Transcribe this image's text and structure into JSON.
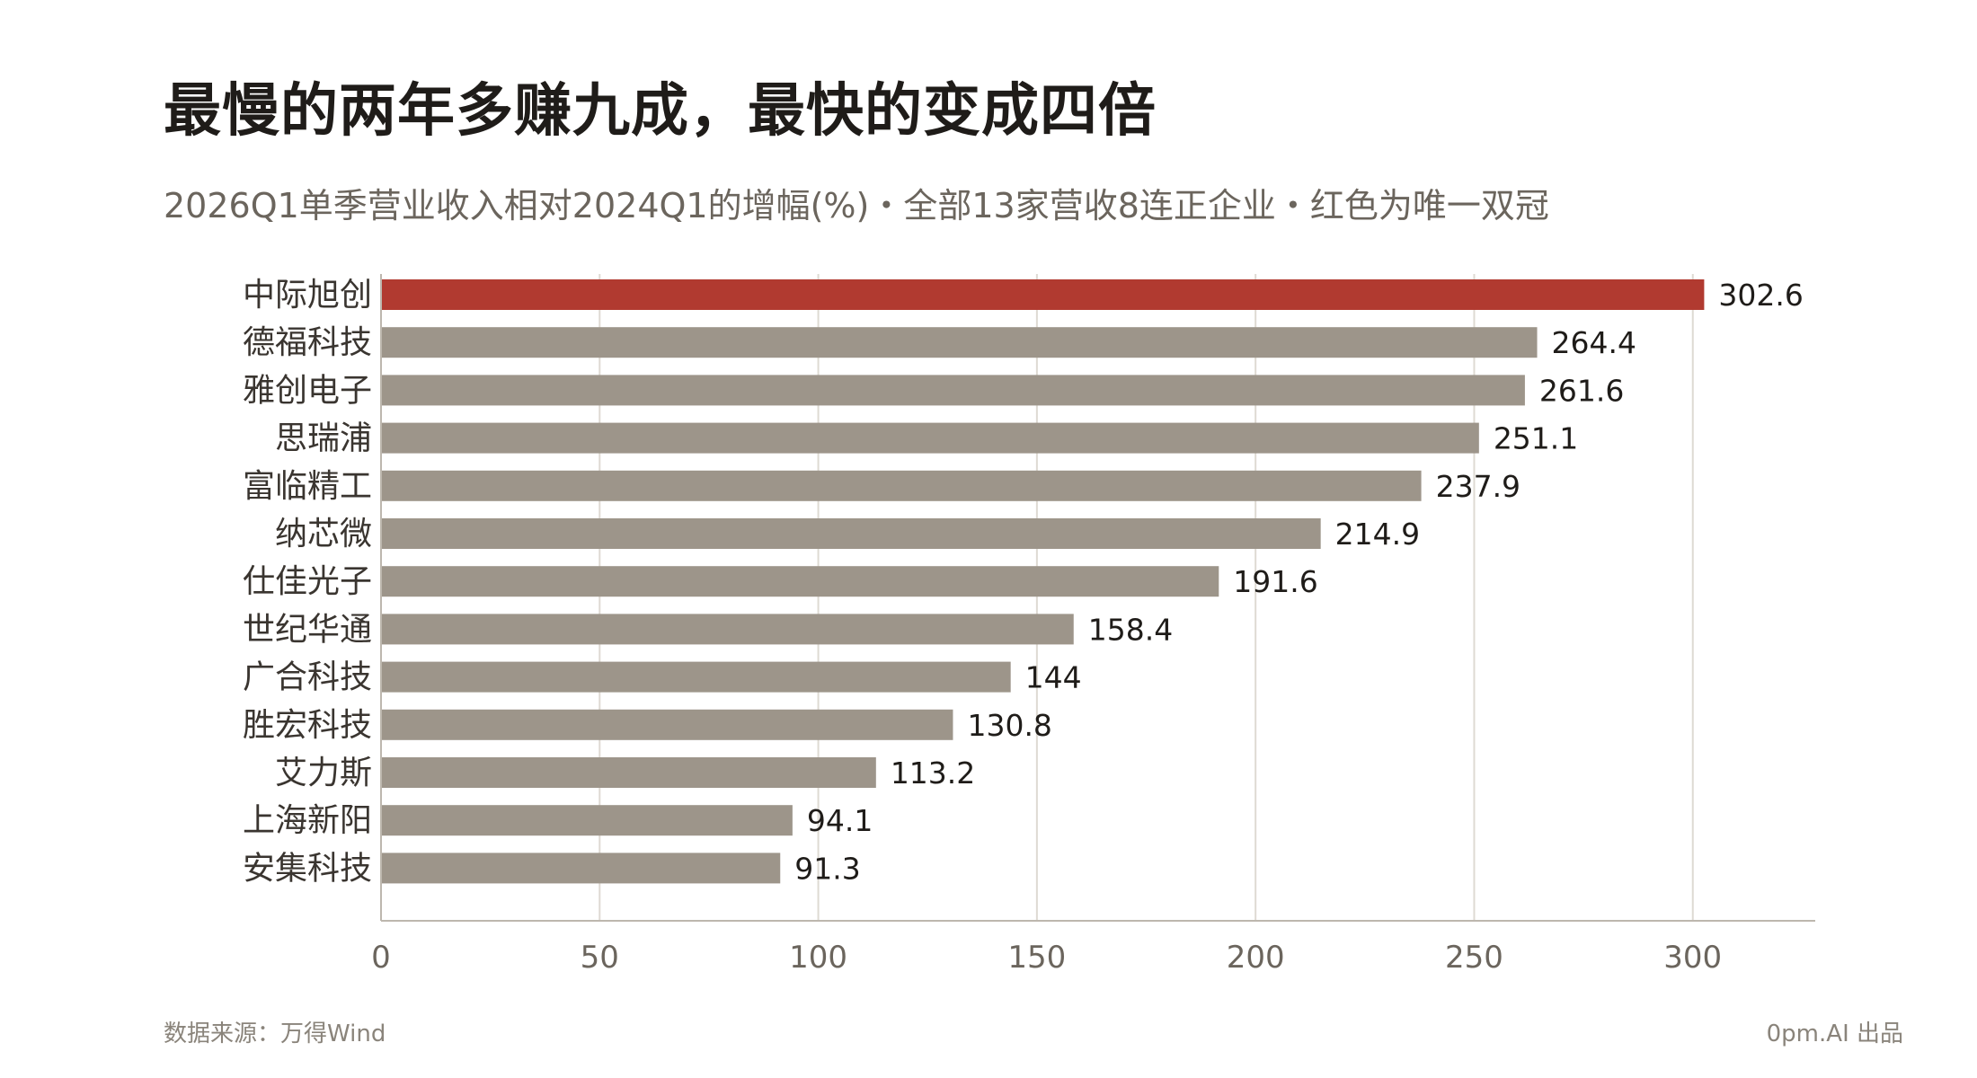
{
  "header": {
    "title": "最慢的两年多赚九成，最快的变成四倍",
    "subtitle": "2026Q1单季营业收入相对2024Q1的增幅(%)・全部13家营收8连正企业・红色为唯一双冠"
  },
  "footer": {
    "source": "数据来源：万得Wind",
    "credit": "0pm.AI 出品"
  },
  "colors": {
    "highlight": "#b13a30",
    "bar": "#9d958a",
    "grid": "#dedad3",
    "axis": "#bdb7ae"
  },
  "chart_data": {
    "type": "bar",
    "orientation": "horizontal",
    "categories": [
      "中际旭创",
      "德福科技",
      "雅创电子",
      "思瑞浦",
      "富临精工",
      "纳芯微",
      "仕佳光子",
      "世纪华通",
      "广合科技",
      "胜宏科技",
      "艾力斯",
      "上海新阳",
      "安集科技"
    ],
    "values": [
      302.6,
      264.4,
      261.6,
      251.1,
      237.9,
      214.9,
      191.6,
      158.4,
      144,
      130.8,
      113.2,
      94.1,
      91.3
    ],
    "value_labels": [
      "302.6",
      "264.4",
      "261.6",
      "251.1",
      "237.9",
      "214.9",
      "191.6",
      "158.4",
      "144",
      "130.8",
      "113.2",
      "94.1",
      "91.3"
    ],
    "highlight_index": 0,
    "xlim": [
      0,
      328
    ],
    "xticks": [
      0,
      50,
      100,
      150,
      200,
      250,
      300
    ],
    "grid": true
  }
}
